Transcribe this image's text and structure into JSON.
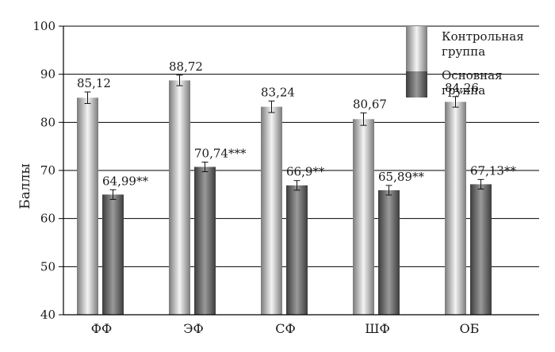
{
  "chart_data": {
    "type": "bar",
    "categories": [
      "ФФ",
      "ЭФ",
      "СФ",
      "ШФ",
      "ОБ"
    ],
    "series": [
      {
        "name": "Контрольная группа",
        "values": [
          85.12,
          88.72,
          83.24,
          80.67,
          84.26
        ],
        "labels": [
          "85,12",
          "88,72",
          "83,24",
          "80,67",
          "84,26"
        ],
        "errors": [
          1.2,
          1.1,
          1.2,
          1.3,
          1.1
        ]
      },
      {
        "name": "Основная группа",
        "values": [
          64.99,
          70.74,
          66.9,
          65.89,
          67.13
        ],
        "labels": [
          "64,99**",
          "70,74***",
          "66,9**",
          "65,89**",
          "67,13**"
        ],
        "errors": [
          1.0,
          1.0,
          1.0,
          1.0,
          1.0
        ]
      }
    ],
    "legend": {
      "placement": "top-right",
      "items": [
        {
          "line1": "Контрольная",
          "line2": "группа"
        },
        {
          "line1": "Основная",
          "line2": "группа"
        }
      ]
    },
    "ylabel": "Баллы",
    "ylim": [
      40,
      100
    ],
    "yticks": [
      40,
      50,
      60,
      70,
      80,
      90,
      100
    ],
    "grid": true,
    "colors": {
      "control_dark": "#7a7a7a",
      "control_light": "#f4f4f4",
      "main_dark": "#3c3c3c",
      "main_light": "#9a9a9a",
      "axis": "#000000"
    }
  }
}
